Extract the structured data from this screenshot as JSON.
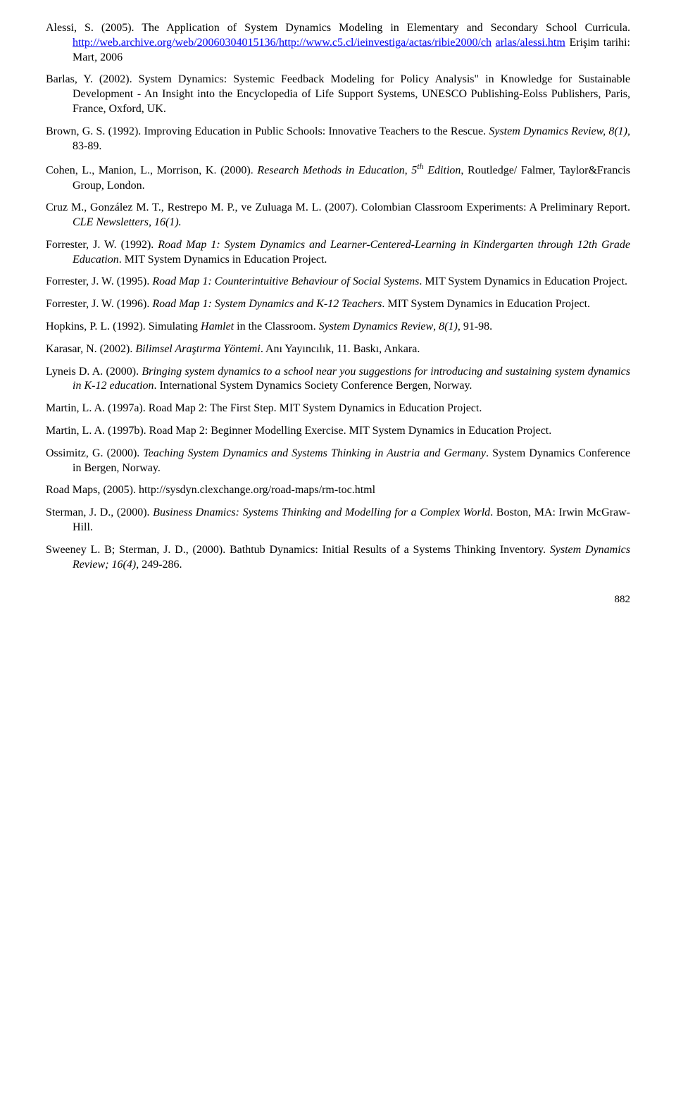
{
  "refs": [
    {
      "pre": "Alessi, S. (2005). The Application of System Dynamics Modeling in Elementary and Secondary School Curricula. ",
      "link1": "http://web.archive.org/web/20060304015136/http://www.c5.cl/ieinvestiga/actas/ribie2000/ch",
      "mid": " ",
      "link2": "arlas/alessi.htm",
      "post": " Erişim tarihi: Mart, 2006"
    },
    {
      "text": "Barlas, Y. (2002). System Dynamics: Systemic Feedback Modeling for Policy Analysis\" in Knowledge for Sustainable Development - An Insight into the Encyclopedia of Life Support Systems, UNESCO Publishing-Eolss Publishers, Paris, France, Oxford, UK."
    },
    {
      "pre": "Brown, G. S. (1992). Improving Education in Public Schools: Innovative Teachers to the Rescue. ",
      "italic": "System Dynamics Review, 8(1),",
      "post": " 83-89."
    },
    {
      "pre": "Cohen, L., Manion, L., Morrison, K. (2000). ",
      "italic": "Research Methods in Education, 5",
      "sup": "th",
      "italic2": " Edition",
      "post": ", Routledge/ Falmer, Taylor&Francis Group, London."
    },
    {
      "pre": "Cruz M., González M. T., Restrepo M. P., ve Zuluaga M. L. (2007). Colombian Classroom Experiments: A Preliminary Report. ",
      "italic": "CLE Newsletters, 16(1).",
      "post": ""
    },
    {
      "pre": "Forrester, J. W. (1992). ",
      "italic": "Road Map 1: System Dynamics and Learner-Centered-Learning in Kindergarten through 12th Grade Education",
      "post": ". MIT System Dynamics in Education Project."
    },
    {
      "pre": "Forrester, J. W. (1995). ",
      "italic": "Road Map 1: Counterintuitive Behaviour of Social Systems",
      "post": ". MIT System Dynamics in Education Project."
    },
    {
      "pre": "Forrester, J. W. (1996). ",
      "italic": "Road Map 1: System Dynamics and K-12 Teachers",
      "post": ". MIT System Dynamics in Education Project."
    },
    {
      "pre": "Hopkins, P. L. (1992). Simulating ",
      "italic": "Hamlet",
      "mid": " in the Classroom. ",
      "italic2": "System Dynamics Review",
      "post": ", ",
      "italic3": "8(1)",
      "post2": ", 91-98."
    },
    {
      "pre": "Karasar, N. (2002). ",
      "italic": "Bilimsel Araştırma Yöntemi",
      "post": ". Anı Yayıncılık, 11. Baskı, Ankara."
    },
    {
      "pre": "Lyneis D. A. (2000). ",
      "italic": "Bringing system dynamics to a school near you suggestions for introducing and sustaining system dynamics in K-12 education",
      "post": ". International System Dynamics Society Conference Bergen, Norway."
    },
    {
      "text": "Martin, L. A. (1997a). Road Map 2: The First Step. MIT System Dynamics in Education Project."
    },
    {
      "text": "Martin, L. A. (1997b). Road Map 2: Beginner Modelling Exercise. MIT System Dynamics in Education Project."
    },
    {
      "pre": "Ossimitz, G. (2000). ",
      "italic": "Teaching System Dynamics and Systems Thinking in Austria and Germany",
      "post": ". System Dynamics Conference in Bergen, Norway."
    },
    {
      "text": "Road Maps, (2005). http://sysdyn.clexchange.org/road-maps/rm-toc.html"
    },
    {
      "pre": "Sterman, J. D., (2000). ",
      "italic": "Business Dnamics: Systems Thinking and Modelling for a Complex World",
      "post": ". Boston, MA: Irwin McGraw- Hill."
    },
    {
      "pre": "Sweeney L. B; Sterman, J. D., (2000). Bathtub Dynamics: Initial Results of a Systems Thinking Inventory. ",
      "italic": "System Dynamics Review;  16(4)",
      "post": ", 249-286."
    }
  ],
  "page_number": "882"
}
